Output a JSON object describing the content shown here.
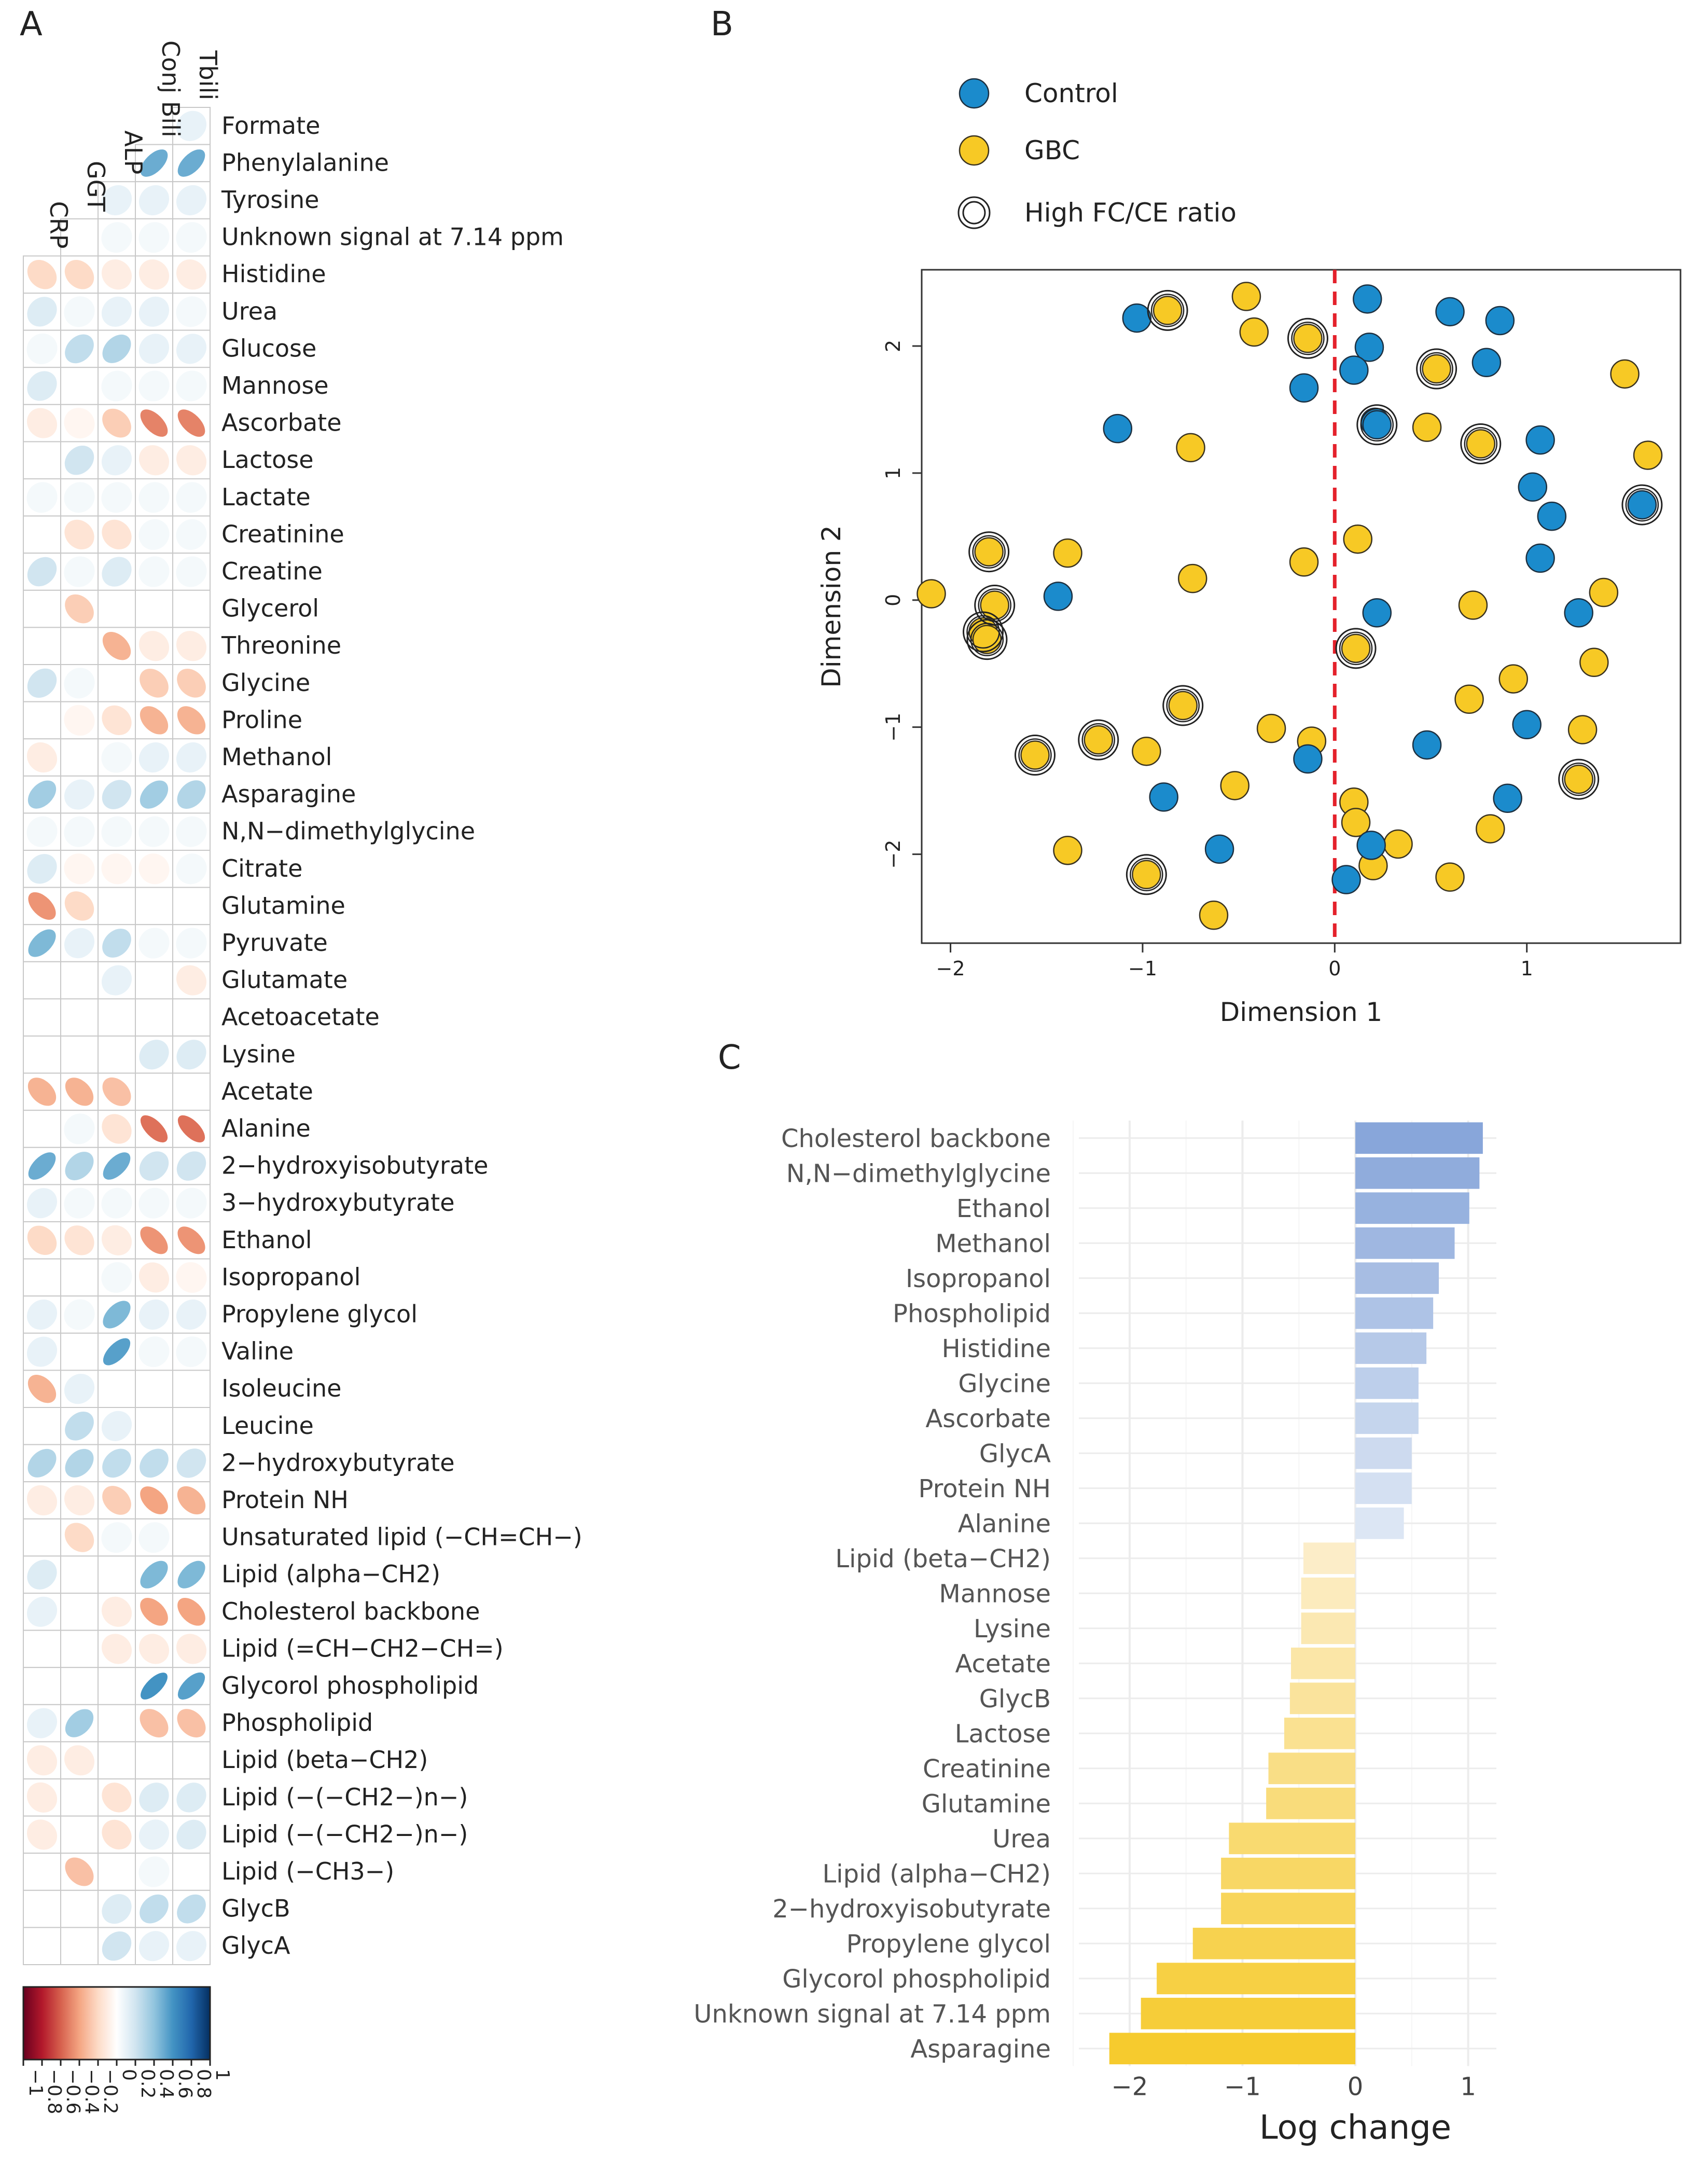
{
  "panel_labels": {
    "a": "A",
    "b": "B",
    "c": "C"
  },
  "colors": {
    "control": "#1b8bcc",
    "gbc": "#f7c925",
    "dashed": "#e4212b",
    "bar_pos": "#8aa9dc",
    "bar_neg": "#f6cf3c",
    "corr_neg": "#b2182b",
    "corr_pos": "#2166ac"
  },
  "chart_data": [
    {
      "panel": "A",
      "type": "heatmap",
      "style": "correlation ellipse plot",
      "columns": [
        "CRP",
        "GGT",
        "ALP",
        "Conj Bili",
        "Tbili"
      ],
      "rows": [
        "Formate",
        "Phenylalanine",
        "Tyrosine",
        "Unknown signal at 7.14 ppm",
        "Histidine",
        "Urea",
        "Glucose",
        "Mannose",
        "Ascorbate",
        "Lactose",
        "Lactate",
        "Creatinine",
        "Creatine",
        "Glycerol",
        "Threonine",
        "Glycine",
        "Proline",
        "Methanol",
        "Asparagine",
        "N,N−dimethylglycine",
        "Citrate",
        "Glutamine",
        "Pyruvate",
        "Glutamate",
        "Acetoacetate",
        "Lysine",
        "Acetate",
        "Alanine",
        "2−hydroxyisobutyrate",
        "3−hydroxybutyrate",
        "Ethanol",
        "Isopropanol",
        "Propylene glycol",
        "Valine",
        "Isoleucine",
        "Leucine",
        "2−hydroxybutyrate",
        "Protein NH",
        "Unsaturated lipid (−CH=CH−)",
        "Lipid (alpha−CH2)",
        "Cholesterol backbone",
        "Lipid (=CH−CH2−CH=)",
        "Glycorol phospholipid",
        "Phospholipid",
        "Lipid (beta−CH2)",
        "Lipid (−(−CH2−)n−)",
        "Lipid (−(−CH2−)n−)",
        "Lipid (−CH3−)",
        "GlycB",
        "GlycA"
      ],
      "values": [
        [
          null,
          null,
          null,
          null,
          0.1
        ],
        [
          null,
          null,
          null,
          0.5,
          0.5
        ],
        [
          null,
          null,
          0.1,
          0.1,
          0.1
        ],
        [
          null,
          0,
          0.05,
          0.05,
          0.05
        ],
        [
          -0.2,
          -0.2,
          -0.1,
          -0.1,
          -0.1
        ],
        [
          0.15,
          0.05,
          0.1,
          0.1,
          0.05
        ],
        [
          0.05,
          0.25,
          0.3,
          0.1,
          0.1
        ],
        [
          0.15,
          0,
          0.05,
          0.05,
          0.05
        ],
        [
          -0.1,
          -0.05,
          -0.25,
          -0.5,
          -0.5
        ],
        [
          0,
          0.2,
          0.1,
          -0.1,
          -0.1
        ],
        [
          0.05,
          0.05,
          0.05,
          0.05,
          0.05
        ],
        [
          0,
          -0.15,
          -0.15,
          0.05,
          0.05
        ],
        [
          0.2,
          0.05,
          0.15,
          0.05,
          0.05
        ],
        [
          0,
          -0.25,
          0,
          0,
          0
        ],
        [
          0,
          0,
          -0.35,
          -0.1,
          -0.1
        ],
        [
          0.2,
          0.05,
          0,
          -0.25,
          -0.25
        ],
        [
          0,
          -0.05,
          -0.15,
          -0.35,
          -0.35
        ],
        [
          -0.1,
          0,
          0.05,
          0.1,
          0.1
        ],
        [
          0.35,
          0.1,
          0.2,
          0.35,
          0.3
        ],
        [
          0.05,
          0.05,
          0.05,
          0.05,
          0.05
        ],
        [
          0.15,
          -0.05,
          -0.05,
          -0.05,
          0.05
        ],
        [
          -0.45,
          -0.2,
          0,
          0,
          0
        ],
        [
          0.45,
          0.1,
          0.25,
          0.05,
          0.05
        ],
        [
          0,
          0,
          0.1,
          0,
          -0.1
        ],
        [
          0,
          0,
          0,
          0,
          0
        ],
        [
          0,
          0,
          0,
          0.15,
          0.15
        ],
        [
          -0.35,
          -0.35,
          -0.3,
          0,
          0
        ],
        [
          0,
          0.05,
          -0.15,
          -0.55,
          -0.55
        ],
        [
          0.5,
          0.3,
          0.5,
          0.2,
          0.2
        ],
        [
          0.1,
          0.05,
          0.05,
          0.05,
          0.05
        ],
        [
          -0.2,
          -0.15,
          -0.1,
          -0.45,
          -0.45
        ],
        [
          0,
          0,
          0.05,
          -0.1,
          -0.05
        ],
        [
          0.1,
          0.05,
          0.45,
          0.1,
          0.1
        ],
        [
          0.1,
          0,
          0.55,
          0.05,
          0.05
        ],
        [
          -0.35,
          0.1,
          0,
          0,
          0
        ],
        [
          0,
          0.25,
          0.1,
          0,
          0
        ],
        [
          0.3,
          0.3,
          0.25,
          0.25,
          0.2
        ],
        [
          -0.1,
          -0.1,
          -0.25,
          -0.4,
          -0.35
        ],
        [
          0,
          -0.2,
          0.05,
          0.05,
          0
        ],
        [
          0.15,
          0,
          0,
          0.45,
          0.45
        ],
        [
          0.1,
          0,
          -0.1,
          -0.4,
          -0.4
        ],
        [
          0,
          0,
          -0.1,
          -0.1,
          -0.1
        ],
        [
          0,
          0,
          0,
          0.6,
          0.55
        ],
        [
          0.1,
          0.35,
          0,
          -0.3,
          -0.3
        ],
        [
          -0.1,
          -0.1,
          0,
          0,
          0
        ],
        [
          -0.1,
          0,
          -0.15,
          0.15,
          0.15
        ],
        [
          -0.1,
          0,
          -0.15,
          0.1,
          0.15
        ],
        [
          0,
          -0.3,
          0,
          0.05,
          0
        ],
        [
          0,
          0,
          0.15,
          0.25,
          0.25
        ],
        [
          0,
          0,
          0.2,
          0.1,
          0.1
        ]
      ],
      "colorbar": {
        "range": [
          -1,
          1
        ],
        "ticks": [
          "−1",
          "−0.8",
          "−0.6",
          "−0.4",
          "−0.2",
          "0",
          "0.2",
          "0.4",
          "0.6",
          "0.8",
          "1"
        ]
      }
    },
    {
      "panel": "B",
      "type": "scatter",
      "xlabel": "Dimension 1",
      "ylabel": "Dimension 2",
      "xlim": [
        -2.15,
        1.8
      ],
      "ylim": [
        -2.7,
        2.6
      ],
      "xticks": [
        "−2",
        "−1",
        "0",
        "1"
      ],
      "yticks": [
        "−2",
        "−1",
        "0",
        "1",
        "2"
      ],
      "reference_line": {
        "x": 0,
        "style": "dashed red"
      },
      "legend": {
        "position": "top",
        "entries": [
          "Control",
          "GBC",
          "High FC/CE ratio"
        ]
      },
      "series": [
        {
          "name": "Control",
          "points": [
            [
              0.17,
              2.37
            ],
            [
              0.6,
              2.27
            ],
            [
              0.86,
              2.2
            ],
            [
              -1.03,
              2.22
            ],
            [
              0.18,
              1.99
            ],
            [
              0.1,
              1.81
            ],
            [
              0.79,
              1.87
            ],
            [
              -0.16,
              1.67
            ],
            [
              0.21,
              1.4
            ],
            [
              0.22,
              1.38
            ],
            [
              -1.13,
              1.35
            ],
            [
              1.07,
              1.26
            ],
            [
              1.03,
              0.89
            ],
            [
              1.13,
              0.66
            ],
            [
              1.07,
              0.33
            ],
            [
              1.6,
              0.75
            ],
            [
              -1.44,
              0.03
            ],
            [
              0.22,
              -0.1
            ],
            [
              1.27,
              -0.1
            ],
            [
              -0.14,
              -1.25
            ],
            [
              1.0,
              -0.98
            ],
            [
              0.48,
              -1.14
            ],
            [
              0.9,
              -1.56
            ],
            [
              -0.89,
              -1.55
            ],
            [
              -0.6,
              -1.96
            ],
            [
              0.19,
              -1.93
            ],
            [
              0.06,
              -2.2
            ]
          ]
        },
        {
          "name": "GBC",
          "points": [
            [
              -0.46,
              2.39
            ],
            [
              -0.87,
              2.28
            ],
            [
              -0.42,
              2.11
            ],
            [
              -0.14,
              2.06
            ],
            [
              1.51,
              1.78
            ],
            [
              0.53,
              1.82
            ],
            [
              -0.75,
              1.2
            ],
            [
              0.48,
              1.36
            ],
            [
              0.76,
              1.23
            ],
            [
              1.63,
              1.14
            ],
            [
              1.6,
              0.75
            ],
            [
              0.12,
              0.48
            ],
            [
              -1.8,
              0.38
            ],
            [
              -1.39,
              0.37
            ],
            [
              -0.16,
              0.3
            ],
            [
              -0.74,
              0.17
            ],
            [
              -2.1,
              0.05
            ],
            [
              -1.77,
              -0.04
            ],
            [
              1.4,
              0.06
            ],
            [
              0.72,
              -0.04
            ],
            [
              -1.83,
              -0.25
            ],
            [
              -1.81,
              -0.31
            ],
            [
              0.11,
              -0.38
            ],
            [
              1.35,
              -0.49
            ],
            [
              0.93,
              -0.62
            ],
            [
              -0.79,
              -0.83
            ],
            [
              0.7,
              -0.78
            ],
            [
              -0.33,
              -1.01
            ],
            [
              1.29,
              -1.02
            ],
            [
              -1.23,
              -1.1
            ],
            [
              -0.98,
              -1.19
            ],
            [
              -0.12,
              -1.11
            ],
            [
              -1.56,
              -1.22
            ],
            [
              -0.52,
              -1.46
            ],
            [
              1.27,
              -1.41
            ],
            [
              0.1,
              -1.59
            ],
            [
              0.11,
              -1.75
            ],
            [
              0.33,
              -1.92
            ],
            [
              0.81,
              -1.8
            ],
            [
              -1.39,
              -1.97
            ],
            [
              0.2,
              -2.09
            ],
            [
              -0.98,
              -2.16
            ],
            [
              0.6,
              -2.18
            ],
            [
              -0.63,
              -2.48
            ]
          ]
        },
        {
          "name": "High FC/CE ratio",
          "points": [
            [
              -0.87,
              2.28
            ],
            [
              -0.14,
              2.06
            ],
            [
              0.53,
              1.82
            ],
            [
              0.22,
              1.38
            ],
            [
              0.76,
              1.23
            ],
            [
              1.6,
              0.75
            ],
            [
              -1.8,
              0.38
            ],
            [
              -1.77,
              -0.04
            ],
            [
              -1.83,
              -0.25
            ],
            [
              -1.81,
              -0.31
            ],
            [
              0.11,
              -0.38
            ],
            [
              -0.79,
              -0.83
            ],
            [
              -1.23,
              -1.1
            ],
            [
              -1.56,
              -1.22
            ],
            [
              1.27,
              -1.41
            ],
            [
              -0.98,
              -2.16
            ]
          ]
        }
      ]
    },
    {
      "panel": "C",
      "type": "bar",
      "orientation": "horizontal",
      "xlabel": "Log change",
      "xlim": [
        -2.45,
        1.25
      ],
      "xticks": [
        "−2",
        "−1",
        "0",
        "1"
      ],
      "categories": [
        "Cholesterol backbone",
        "N,N−dimethylglycine",
        "Ethanol",
        "Methanol",
        "Isopropanol",
        "Phospholipid",
        "Histidine",
        "Glycine",
        "Ascorbate",
        "GlycA",
        "Protein NH",
        "Alanine",
        "Lipid (beta−CH2)",
        "Mannose",
        "Lysine",
        "Acetate",
        "GlycB",
        "Lactose",
        "Creatinine",
        "Glutamine",
        "Urea",
        "Lipid (alpha−CH2)",
        "2−hydroxyisobutyrate",
        "Propylene glycol",
        "Glycorol phospholipid",
        "Unknown signal at 7.14 ppm",
        "Asparagine"
      ],
      "values": [
        1.13,
        1.1,
        1.01,
        0.88,
        0.74,
        0.69,
        0.63,
        0.56,
        0.56,
        0.5,
        0.5,
        0.43,
        -0.46,
        -0.48,
        -0.48,
        -0.57,
        -0.58,
        -0.63,
        -0.77,
        -0.79,
        -1.12,
        -1.19,
        -1.19,
        -1.44,
        -1.76,
        -1.9,
        -2.18
      ]
    }
  ]
}
